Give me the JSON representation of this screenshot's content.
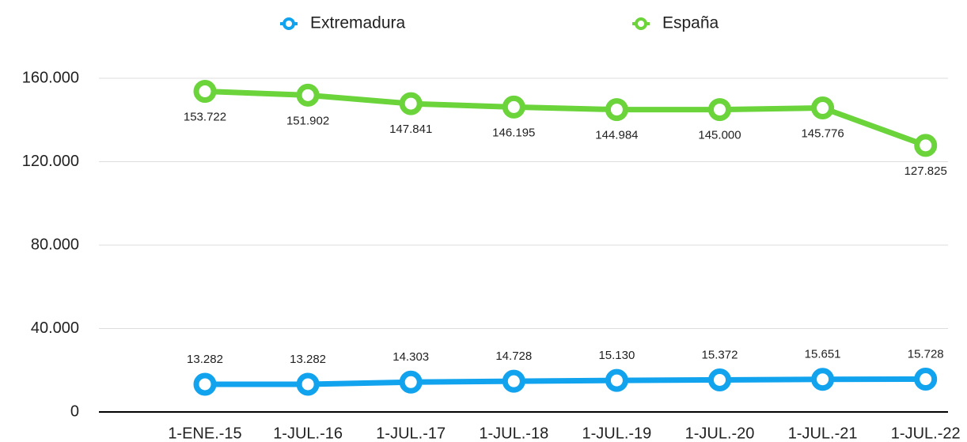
{
  "chart_data": {
    "type": "line",
    "categories": [
      "1-ENE.-15",
      "1-JUL.-16",
      "1-JUL.-17",
      "1-JUL.-18",
      "1-JUL.-19",
      "1-JUL.-20",
      "1-JUL.-21",
      "1-JUL.-22"
    ],
    "series": [
      {
        "name": "Extremadura",
        "color": "#12a3ee",
        "values": [
          13282,
          13282,
          14303,
          14728,
          15130,
          15372,
          15651,
          15728
        ],
        "value_labels": [
          "13.282",
          "13.282",
          "14.303",
          "14.728",
          "15.130",
          "15.372",
          "15.651",
          "15.728"
        ]
      },
      {
        "name": "España",
        "color": "#6ad43a",
        "values": [
          153722,
          151902,
          147841,
          146195,
          144984,
          145000,
          145776,
          127825
        ],
        "value_labels": [
          "153.722",
          "151.902",
          "147.841",
          "146.195",
          "144.984",
          "145.000",
          "145.776",
          "127.825"
        ]
      }
    ],
    "ylim": [
      0,
      160000
    ],
    "yticks": [
      0,
      {
        "value": 40000,
        "label": "40.000"
      },
      {
        "value": 80000,
        "label": "80.000"
      },
      {
        "value": 120000,
        "label": "120.000"
      },
      {
        "value": 160000,
        "label": "160.000"
      }
    ],
    "grid": true
  }
}
